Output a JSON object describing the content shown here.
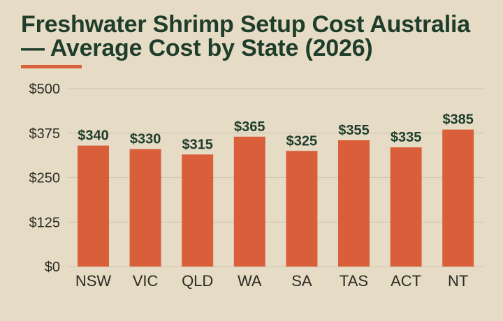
{
  "title": {
    "line1": "Freshwater Shrimp Setup Cost Australia",
    "line2": "— Average Cost by State (2026)"
  },
  "colors": {
    "background": "#e6dcc6",
    "bar": "#d95f3b",
    "title": "#1f3d2b",
    "grid": "#cfc4ad"
  },
  "chart_data": {
    "type": "bar",
    "title": "Freshwater Shrimp Setup Cost Australia — Average Cost by State (2026)",
    "xlabel": "",
    "ylabel": "",
    "categories": [
      "NSW",
      "VIC",
      "QLD",
      "WA",
      "SA",
      "TAS",
      "ACT",
      "NT"
    ],
    "values": [
      340,
      330,
      315,
      365,
      325,
      355,
      335,
      385
    ],
    "value_labels": [
      "$340",
      "$330",
      "$315",
      "$365",
      "$325",
      "$355",
      "$335",
      "$385"
    ],
    "ylim": [
      0,
      500
    ],
    "yticks": [
      0,
      125,
      250,
      375,
      500
    ],
    "ytick_labels": [
      "$0",
      "$125",
      "$250",
      "$375",
      "$500"
    ],
    "grid": true,
    "legend": "none"
  }
}
